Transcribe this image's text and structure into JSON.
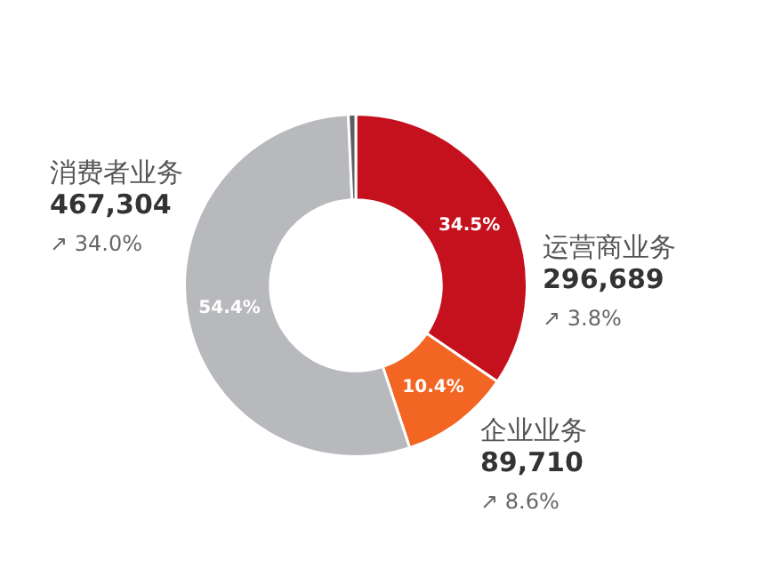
{
  "chart_data": {
    "type": "donut",
    "categories": [
      "运营商业务",
      "企业业务",
      "消费者业务",
      null
    ],
    "values": [
      34.5,
      10.4,
      54.4,
      0.7
    ],
    "colors": [
      "#c4111d",
      "#f26522",
      "#b8b9bc",
      "#5e5e60"
    ],
    "value_labels": [
      "34.5%",
      "10.4%",
      "54.4%",
      null
    ],
    "annotations": [
      "296,689",
      "↗ 3.8%",
      "89,710",
      "↗ 8.6%",
      "467,304",
      "↗ 34.0%"
    ],
    "legend": false
  }
}
